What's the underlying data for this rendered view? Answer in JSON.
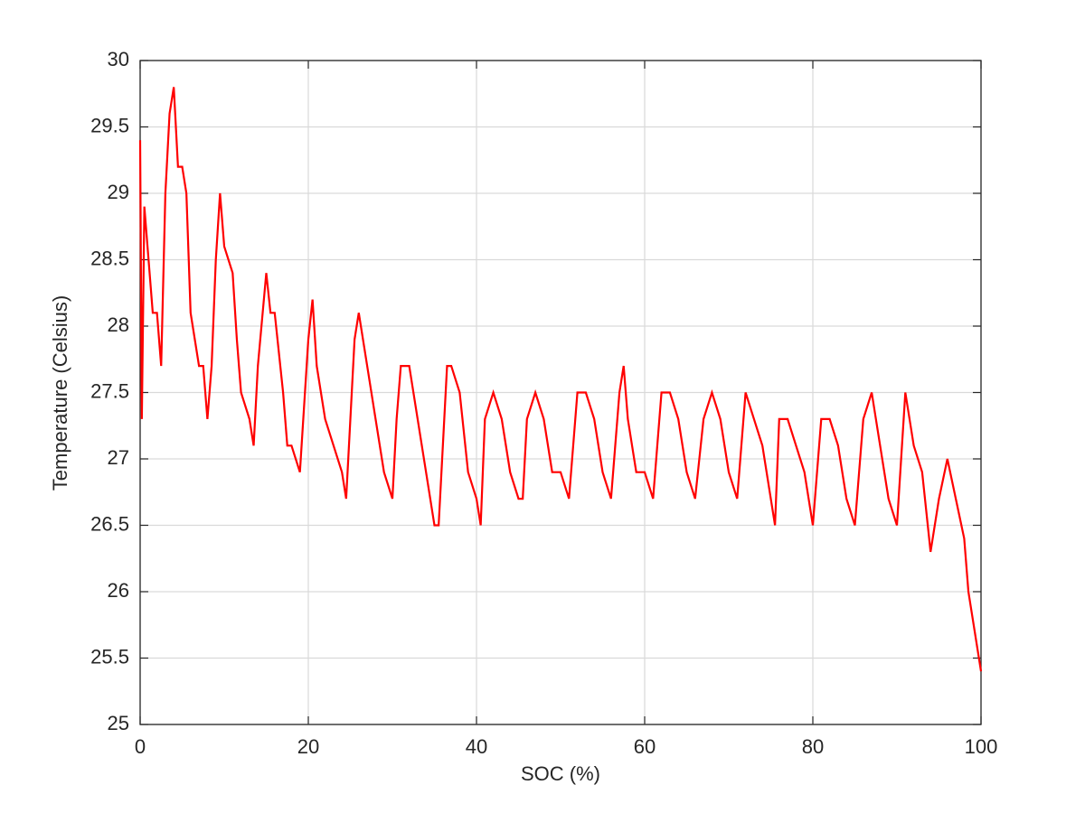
{
  "chart_data": {
    "type": "line",
    "xlabel": "SOC (%)",
    "ylabel": "Temperature (Celsius)",
    "xlim": [
      0,
      100
    ],
    "xticks": [
      0,
      20,
      40,
      60,
      80,
      100
    ],
    "ylim": [
      25,
      30
    ],
    "yticks": [
      25,
      25.5,
      26,
      26.5,
      27,
      27.5,
      28,
      28.5,
      29,
      29.5,
      30
    ],
    "grid": true,
    "series": [
      {
        "name": "Temperature",
        "color": "#ff0000",
        "x": [
          0,
          0.2,
          0.5,
          1,
          1.5,
          2,
          2.5,
          3,
          3.5,
          4,
          4.5,
          5,
          5.5,
          6,
          6.5,
          7,
          7.5,
          8,
          8.5,
          9,
          9.5,
          10,
          11,
          11.5,
          12,
          13,
          13.5,
          14,
          15,
          15.5,
          16,
          17,
          17.5,
          18,
          19,
          20,
          20.5,
          21,
          22,
          23,
          24,
          24.5,
          25,
          25.5,
          26,
          27,
          28,
          29,
          30,
          30.5,
          31,
          32,
          33,
          34,
          35,
          35.5,
          36,
          36.5,
          37,
          38,
          39,
          40,
          40.5,
          41,
          42,
          43,
          44,
          45,
          45.5,
          46,
          47,
          48,
          49,
          50,
          51,
          51.5,
          52,
          53,
          54,
          55,
          56,
          57,
          57.5,
          58,
          59,
          60,
          61,
          62,
          63,
          64,
          65,
          66,
          67,
          68,
          69,
          70,
          71,
          72,
          73,
          74,
          75,
          75.5,
          76,
          77,
          78,
          79,
          80,
          81,
          82,
          83,
          84,
          85,
          86,
          87,
          88,
          89,
          90,
          91,
          92,
          93,
          94,
          95,
          96,
          97,
          98,
          98.5,
          99,
          99.5,
          100
        ],
        "values": [
          29.4,
          27.3,
          28.9,
          28.5,
          28.1,
          28.1,
          27.7,
          29.0,
          29.6,
          29.8,
          29.2,
          29.2,
          29.0,
          28.1,
          27.9,
          27.7,
          27.7,
          27.3,
          27.7,
          28.5,
          29.0,
          28.6,
          28.4,
          27.9,
          27.5,
          27.3,
          27.1,
          27.7,
          28.4,
          28.1,
          28.1,
          27.5,
          27.1,
          27.1,
          26.9,
          27.9,
          28.2,
          27.7,
          27.3,
          27.1,
          26.9,
          26.7,
          27.3,
          27.9,
          28.1,
          27.7,
          27.3,
          26.9,
          26.7,
          27.3,
          27.7,
          27.7,
          27.3,
          26.9,
          26.5,
          26.5,
          27.1,
          27.7,
          27.7,
          27.5,
          26.9,
          26.7,
          26.5,
          27.3,
          27.5,
          27.3,
          26.9,
          26.7,
          26.7,
          27.3,
          27.5,
          27.3,
          26.9,
          26.9,
          26.7,
          27.1,
          27.5,
          27.5,
          27.3,
          26.9,
          26.7,
          27.5,
          27.7,
          27.3,
          26.9,
          26.9,
          26.7,
          27.5,
          27.5,
          27.3,
          26.9,
          26.7,
          27.3,
          27.5,
          27.3,
          26.9,
          26.7,
          27.5,
          27.3,
          27.1,
          26.7,
          26.5,
          27.3,
          27.3,
          27.1,
          26.9,
          26.5,
          27.3,
          27.3,
          27.1,
          26.7,
          26.5,
          27.3,
          27.5,
          27.1,
          26.7,
          26.5,
          27.5,
          27.1,
          26.9,
          26.3,
          26.7,
          27.0,
          26.7,
          26.4,
          26.0,
          25.8,
          25.6,
          25.4
        ]
      }
    ]
  }
}
